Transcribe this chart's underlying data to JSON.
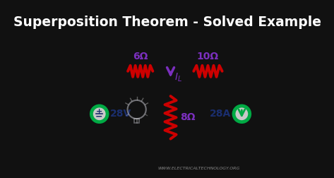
{
  "title": "Superposition Theorem - Solved Example",
  "title_bg": "#111111",
  "circuit_bg": "#c8c8c8",
  "wire_color": "#111111",
  "resistor6_label": "6Ω",
  "resistor10_label": "10Ω",
  "resistor8_label": "8Ω",
  "voltage_label": "28V",
  "current_label": "28A",
  "website": "WWW.ELECTRICALTECHNOLOGY.ORG",
  "purple": "#7B2FBE",
  "red": "#CC0000",
  "green": "#00AA44",
  "navy": "#1a2e6e",
  "wire_lw": 3.0,
  "res_lw": 2.8,
  "circ_lw": 3.5,
  "circ_r": 0.45
}
